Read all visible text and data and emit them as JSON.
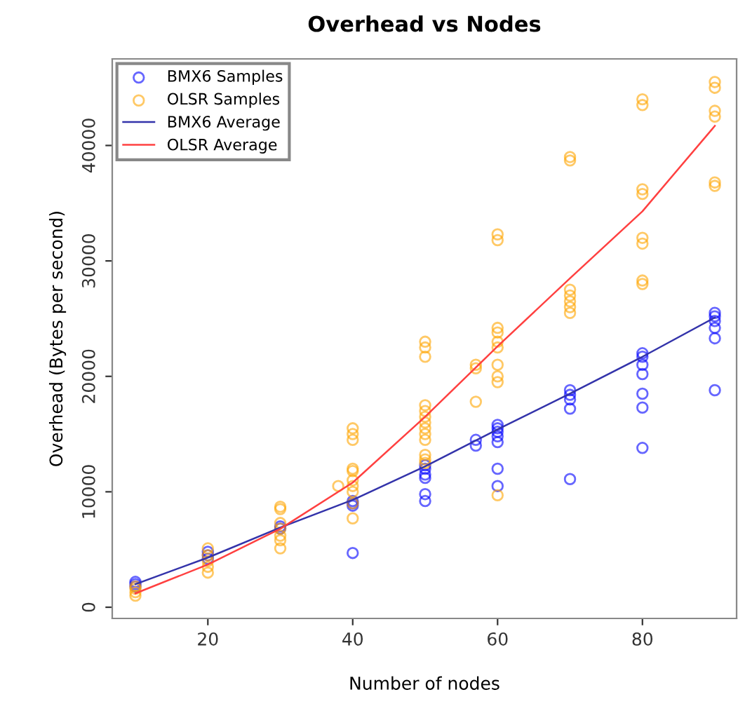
{
  "chart_data": {
    "type": "scatter",
    "title": "Overhead vs Nodes",
    "xlabel": "Number of nodes",
    "ylabel": "Overhead (Bytes per second)",
    "xlim": [
      6.8,
      93
    ],
    "ylim": [
      -970,
      47500
    ],
    "xticks": [
      20,
      40,
      60,
      80
    ],
    "yticks": [
      0,
      10000,
      20000,
      30000,
      40000
    ],
    "grid": false,
    "legend": "top left",
    "series": [
      {
        "name": "BMX6 Samples",
        "marker": "circle",
        "color": "#0000ff",
        "x": [
          10,
          10,
          10,
          20,
          20,
          20,
          30,
          30,
          40,
          40,
          40,
          40,
          50,
          50,
          50,
          50,
          50,
          50,
          57,
          57,
          60,
          60,
          60,
          60,
          60,
          60,
          60,
          70,
          70,
          70,
          70,
          70,
          80,
          80,
          80,
          80,
          80,
          80,
          80,
          90,
          90,
          90,
          90,
          90,
          90
        ],
        "values": [
          1800,
          2000,
          2200,
          4200,
          4500,
          4800,
          6800,
          7000,
          9200,
          9000,
          8800,
          4700,
          12300,
          12000,
          11500,
          11200,
          9800,
          9200,
          14500,
          14000,
          15800,
          15500,
          15200,
          14800,
          14300,
          12000,
          10500,
          18800,
          18400,
          18000,
          17200,
          11100,
          22000,
          21700,
          21000,
          20200,
          18500,
          17300,
          13800,
          25500,
          25200,
          24800,
          24200,
          23300,
          18800
        ]
      },
      {
        "name": "OLSR Samples",
        "marker": "circle",
        "color": "#ffa500",
        "x": [
          10,
          10,
          10,
          10,
          20,
          20,
          20,
          20,
          20,
          30,
          30,
          30,
          30,
          30,
          30,
          30,
          38,
          40,
          40,
          40,
          40,
          40,
          40,
          40,
          40,
          40,
          40,
          50,
          50,
          50,
          50,
          50,
          50,
          50,
          50,
          50,
          50,
          50,
          50,
          50,
          57,
          57,
          57,
          60,
          60,
          60,
          60,
          60,
          60,
          60,
          60,
          60,
          60,
          70,
          70,
          70,
          70,
          70,
          70,
          70,
          80,
          80,
          80,
          80,
          80,
          80,
          80,
          80,
          90,
          90,
          90,
          90,
          90,
          90
        ],
        "values": [
          1000,
          1300,
          1600,
          1800,
          3000,
          3500,
          4000,
          4500,
          5100,
          5100,
          5800,
          6200,
          6800,
          7300,
          8500,
          8700,
          10500,
          7700,
          9000,
          10000,
          10500,
          11000,
          11800,
          12000,
          14500,
          15000,
          15500,
          23000,
          22500,
          21700,
          17500,
          17000,
          16500,
          16000,
          15500,
          15000,
          14500,
          13200,
          12800,
          12500,
          21000,
          20700,
          17800,
          32300,
          31800,
          24200,
          23800,
          23000,
          22500,
          21000,
          20000,
          19500,
          9700,
          39000,
          38700,
          27500,
          27000,
          26500,
          26000,
          25500,
          44000,
          43500,
          36200,
          35800,
          32000,
          31500,
          28300,
          28000,
          45500,
          45000,
          43000,
          42500,
          36800,
          36500
        ]
      },
      {
        "name": "BMX6 Average",
        "type": "line",
        "color": "#3333aa",
        "x": [
          10,
          20,
          30,
          40,
          50,
          60,
          70,
          80,
          90
        ],
        "values": [
          2000,
          4300,
          6900,
          9300,
          12200,
          15400,
          18500,
          21700,
          25100
        ]
      },
      {
        "name": "OLSR Average",
        "type": "line",
        "color": "#ff4040",
        "x": [
          10,
          20,
          30,
          40,
          50,
          60,
          70,
          80,
          90
        ],
        "values": [
          1200,
          3700,
          6800,
          10800,
          16500,
          22600,
          28500,
          34300,
          41700
        ]
      }
    ]
  }
}
